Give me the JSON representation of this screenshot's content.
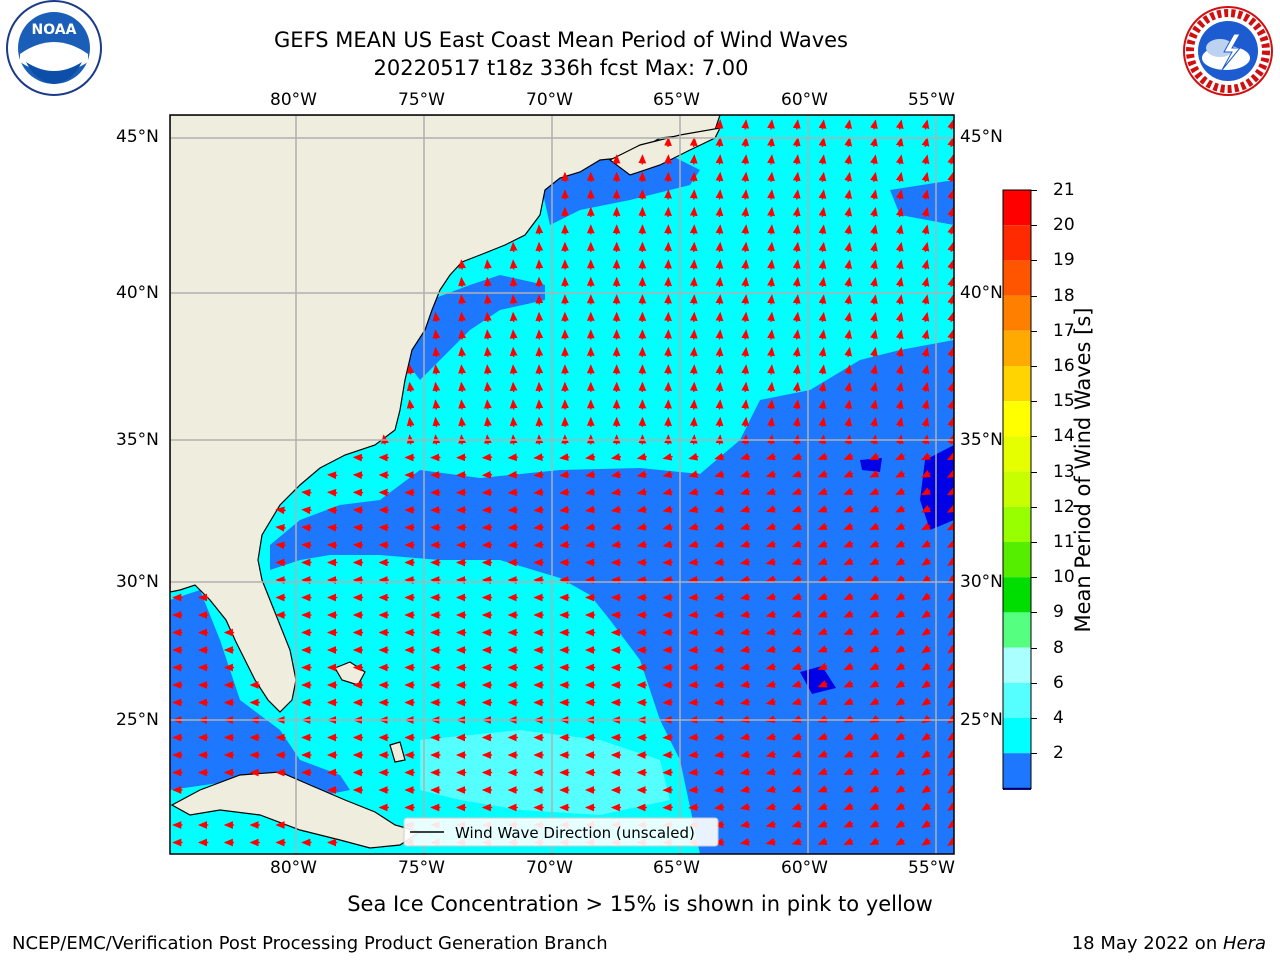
{
  "header": {
    "title_line1": "GEFS MEAN US East Coast Mean Period of Wind Waves",
    "title_line2": "20220517 t18z 336h fcst   Max: 7.00",
    "noaa_logo_text": "NOAA",
    "nws_logo_text": "NATIONAL WEATHER SERVICE"
  },
  "map": {
    "lon_labels": [
      "80°W",
      "75°W",
      "70°W",
      "65°W",
      "60°W",
      "55°W"
    ],
    "lat_labels": [
      "45°N",
      "40°N",
      "35°N",
      "30°N",
      "25°N"
    ],
    "legend_label": "Wind Wave Direction (unscaled)",
    "colors": {
      "land": "#efedde",
      "period_2_4": "#1e78ff",
      "period_4_6": "#00ffff",
      "period_6_7": "#55ffff",
      "period_lt2": "#0000e6",
      "arrow": "#ff0000",
      "grid": "#b0b0b0"
    }
  },
  "colorbar": {
    "title": "Mean Period of Wind Waves [s]",
    "ticks": [
      "21",
      "20",
      "19",
      "18",
      "17",
      "16",
      "15",
      "14",
      "13",
      "12",
      "11",
      "10",
      "9",
      "8",
      "6",
      "4",
      "2"
    ],
    "colors": [
      "#ff0000",
      "#ff2a00",
      "#ff5500",
      "#ff7f00",
      "#ffaa00",
      "#ffd400",
      "#ffff00",
      "#e5ff00",
      "#c8ff00",
      "#97ff00",
      "#55ee00",
      "#00dd00",
      "#55ff80",
      "#aaffff",
      "#55ffff",
      "#00ffff",
      "#1e78ff",
      "#0000e6"
    ]
  },
  "footer": {
    "note": "Sea Ice Concentration > 15% is shown in pink to yellow",
    "credit": "NCEP/EMC/Verification Post Processing Product Generation Branch",
    "date": "18 May 2022 on ",
    "machine": "Hera"
  }
}
